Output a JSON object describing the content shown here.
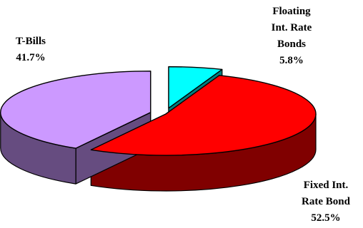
{
  "chart_data": {
    "type": "pie",
    "style": "3d-exploded",
    "slices": [
      {
        "label_lines": [
          "Floating",
          "Int. Rate",
          "Bonds"
        ],
        "value_label": "5.8%",
        "value": 5.8,
        "color": "#00ffff",
        "side_color": "#008080"
      },
      {
        "label_lines": [
          "Fixed Int.",
          "Rate Bond"
        ],
        "value_label": "52.5%",
        "value": 52.5,
        "color": "#ff0000",
        "side_color": "#800000"
      },
      {
        "label_lines": [
          "T-Bills"
        ],
        "value_label": "41.7%",
        "value": 41.7,
        "color": "#cc99ff",
        "side_color": "#664c80"
      }
    ],
    "legend": "none"
  }
}
